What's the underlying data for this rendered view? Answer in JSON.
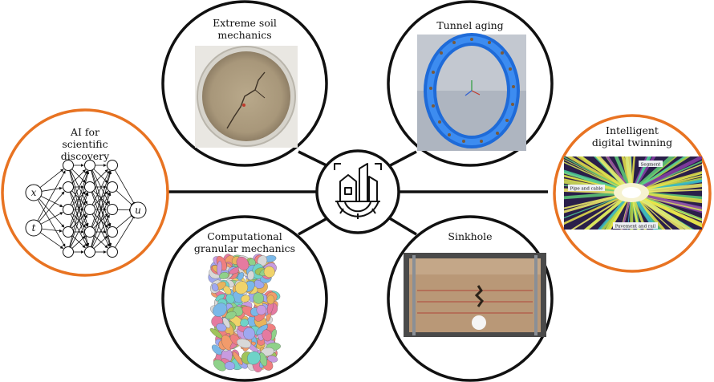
{
  "nodes": {
    "ai": {
      "title_lines": [
        "AI for",
        "scientific discovery"
      ],
      "inputs": [
        "x",
        "t"
      ],
      "output": "u",
      "border_color": "#e87322"
    },
    "extreme_soil": {
      "title_lines": [
        "Extreme soil",
        "mechanics"
      ]
    },
    "tunnel": {
      "title_lines": [
        "Tunnel aging"
      ]
    },
    "twin": {
      "title_lines": [
        "Intelligent",
        "digital twinning"
      ],
      "image_labels": [
        "Segment",
        "Pipe and cable",
        "Pavement and rail"
      ],
      "border_color": "#e87322"
    },
    "granular": {
      "title_lines": [
        "Computational",
        "granular mechanics"
      ]
    },
    "sinkhole": {
      "title_lines": [
        "Sinkhole"
      ]
    }
  },
  "hub": {
    "icon": "smart-city-gear-icon"
  },
  "colors": {
    "orange": "#e87322",
    "line": "#111111"
  }
}
